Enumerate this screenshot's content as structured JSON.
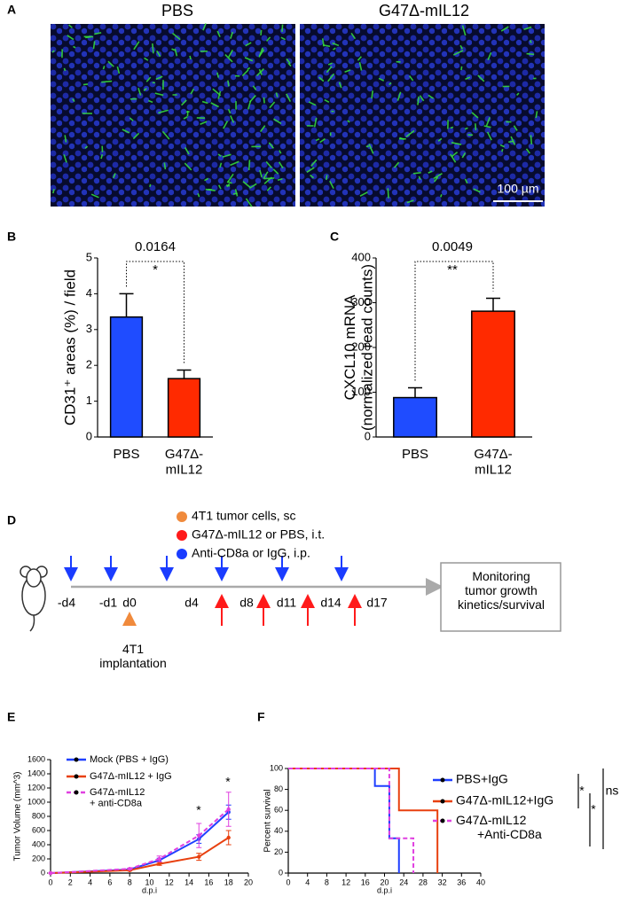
{
  "panel_labels": [
    "A",
    "B",
    "C",
    "D",
    "E",
    "F"
  ],
  "panel_a": {
    "titles": [
      "PBS",
      "G47Δ-mIL12"
    ],
    "scale_bar": "100 µm"
  },
  "panel_d": {
    "legend": [
      "4T1 tumor cells, sc",
      "G47Δ-mIL12 or PBS, i.t.",
      "Anti-CD8a or IgG, i.p."
    ],
    "timeline": [
      "-d4",
      "-d1",
      "d0",
      "d4",
      "d8",
      "d11",
      "d14",
      "d17"
    ],
    "implantation": "4T1\nimplantation",
    "box": "Monitoring\ntumor growth\nkinetics/survival"
  },
  "chart_data": [
    {
      "type": "bar",
      "ylabel": "CD31⁺ areas (%) / field",
      "categories": [
        "PBS",
        "G47Δ-\nmIL12"
      ],
      "values": [
        3.35,
        1.63
      ],
      "errors": [
        0.65,
        0.24
      ],
      "colors": [
        "#1f4cff",
        "#ff2a00"
      ],
      "ylim": [
        0,
        5
      ],
      "yticks": [
        0,
        1,
        2,
        3,
        4,
        5
      ],
      "annotations": [
        "0.0164",
        "*"
      ]
    },
    {
      "type": "bar",
      "ylabel": "CXCL10  mRNA\n(normalized read counts)",
      "categories": [
        "PBS",
        "G47Δ-\nmIL12"
      ],
      "values": [
        88,
        281
      ],
      "errors": [
        22,
        29
      ],
      "colors": [
        "#1f4cff",
        "#ff2a00"
      ],
      "ylim": [
        0,
        400
      ],
      "yticks": [
        0,
        100,
        200,
        300,
        400
      ],
      "annotations": [
        "0.0049",
        "**"
      ]
    },
    {
      "type": "line",
      "xlabel": "d.p.i",
      "ylabel": "Tumor Volume (mm^3)",
      "xlim": [
        0,
        20
      ],
      "xticks": [
        0,
        2,
        4,
        6,
        8,
        10,
        12,
        14,
        16,
        18,
        20
      ],
      "ylim": [
        0,
        1600
      ],
      "yticks": [
        0,
        200,
        400,
        600,
        800,
        1000,
        1200,
        1400,
        1600
      ],
      "series": [
        {
          "name": "Mock (PBS + IgG)",
          "color": "#1f3fff",
          "line_style": "solid",
          "x": [
            0,
            8,
            11,
            15,
            18
          ],
          "values": [
            0,
            50,
            180,
            480,
            860
          ],
          "errors": [
            0,
            10,
            30,
            60,
            100
          ]
        },
        {
          "name": "G47Δ-mIL12 + IgG",
          "color": "#e8400f",
          "line_style": "solid",
          "x": [
            0,
            8,
            11,
            15,
            18
          ],
          "values": [
            0,
            40,
            130,
            230,
            500
          ],
          "errors": [
            0,
            10,
            20,
            50,
            100
          ]
        },
        {
          "name": "G47Δ-mIL12\n+ anti-CD8a",
          "color": "#e040e0",
          "line_style": "dashed",
          "x": [
            0,
            8,
            11,
            15,
            18
          ],
          "values": [
            0,
            60,
            200,
            530,
            900
          ],
          "errors": [
            0,
            10,
            40,
            170,
            240
          ]
        }
      ],
      "annotations": [
        "*",
        "*"
      ]
    },
    {
      "type": "step",
      "xlabel": "d.p.i",
      "ylabel": "Percent survival",
      "xlim": [
        0,
        40
      ],
      "xticks": [
        0,
        4,
        8,
        12,
        16,
        20,
        24,
        28,
        32,
        36,
        40
      ],
      "ylim": [
        0,
        100
      ],
      "yticks": [
        0,
        20,
        40,
        60,
        80,
        100
      ],
      "series": [
        {
          "name": "PBS+IgG",
          "color": "#1f3fff",
          "line_style": "solid",
          "x": [
            0,
            18,
            21,
            23
          ],
          "values": [
            100,
            83.3,
            33.3,
            0
          ]
        },
        {
          "name": "G47Δ-mIL12+IgG",
          "color": "#e8400f",
          "line_style": "solid",
          "x": [
            0,
            23,
            31
          ],
          "values": [
            100,
            60,
            0
          ]
        },
        {
          "name": "G47Δ-mIL12\n+Anti-CD8a",
          "color": "#e040e0",
          "line_style": "dashed",
          "x": [
            0,
            21,
            26
          ],
          "values": [
            100,
            33.3,
            0
          ]
        }
      ],
      "annotations": [
        "*",
        "*",
        "ns"
      ]
    }
  ]
}
